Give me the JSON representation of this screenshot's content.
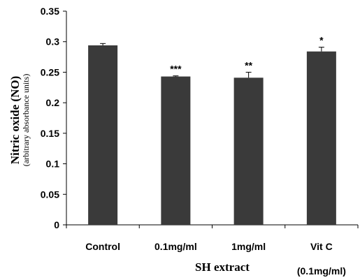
{
  "chart_data": {
    "type": "bar",
    "categories": [
      "Control",
      "0.1mg/ml",
      "1mg/ml",
      "Vit C"
    ],
    "category_sublabels": [
      "",
      "",
      "",
      "(0.1mg/ml)"
    ],
    "values": [
      0.294,
      0.243,
      0.241,
      0.284
    ],
    "errors": [
      0.003,
      0.001,
      0.009,
      0.007
    ],
    "significance": [
      "",
      "***",
      "**",
      "*"
    ],
    "ylabel": "Nitric oxide (NO)",
    "ylabel_sub": "(arbitrary absorbance units)",
    "group_label": "SH extract",
    "ylim": [
      0,
      0.35
    ],
    "yticks": [
      "0",
      "0.05",
      "0.1",
      "0.15",
      "0.2",
      "0.25",
      "0.3",
      "0.35"
    ],
    "bar_color": "#3a3a3a",
    "grid": false
  }
}
